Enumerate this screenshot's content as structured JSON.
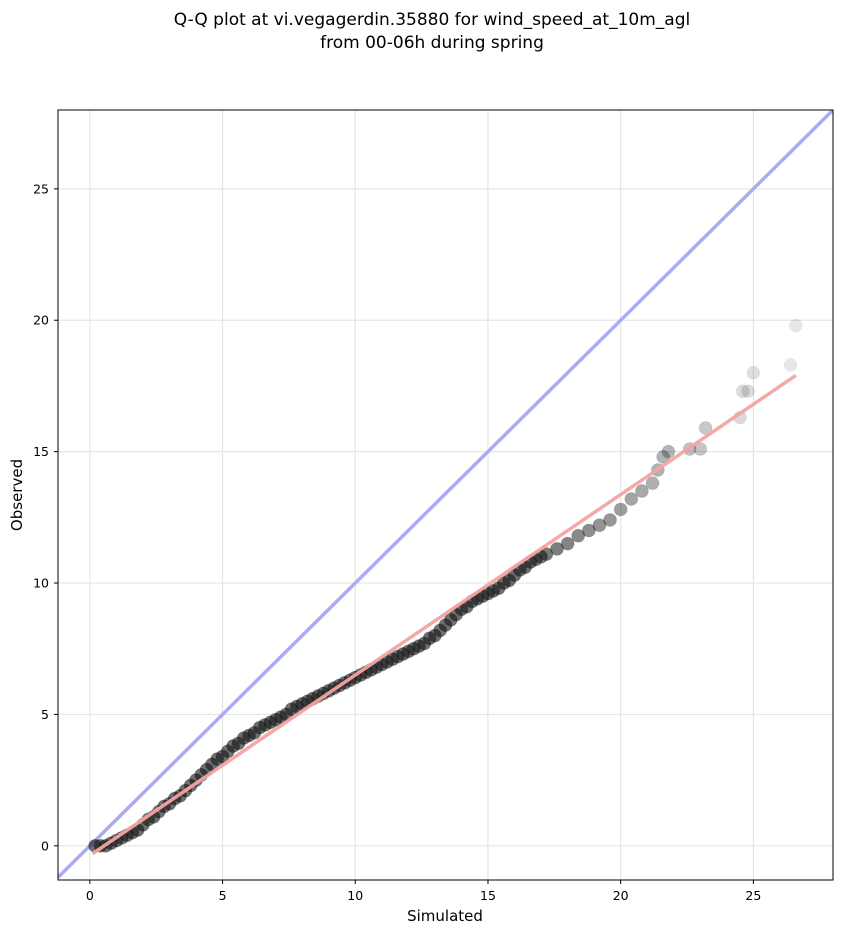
{
  "chart_data": {
    "type": "scatter",
    "title": "Q-Q plot at vi.vegagerdin.35880 for wind_speed_at_10m_agl",
    "subtitle": "from 00-06h during spring",
    "xlabel": "Simulated",
    "ylabel": "Observed",
    "xlim": [
      -1.2,
      28.0
    ],
    "ylim": [
      -1.3,
      28.0
    ],
    "x_ticks": [
      0,
      5,
      10,
      15,
      20,
      25
    ],
    "y_ticks": [
      0,
      5,
      10,
      15,
      20,
      25
    ],
    "grid": true,
    "identity_line": {
      "from": [
        -1.2,
        -1.2
      ],
      "to": [
        28.0,
        28.0
      ],
      "color": "#a9acf4"
    },
    "fit_line": {
      "from": [
        0.1,
        -0.3
      ],
      "to": [
        26.6,
        17.9
      ],
      "color": "#f4a3a3"
    },
    "points_color": "#111111",
    "points": [
      [
        0.2,
        0.0
      ],
      [
        0.4,
        0.0
      ],
      [
        0.6,
        0.0
      ],
      [
        0.8,
        0.1
      ],
      [
        1.0,
        0.2
      ],
      [
        1.2,
        0.3
      ],
      [
        1.4,
        0.4
      ],
      [
        1.6,
        0.5
      ],
      [
        1.8,
        0.6
      ],
      [
        2.0,
        0.8
      ],
      [
        2.2,
        1.0
      ],
      [
        2.4,
        1.1
      ],
      [
        2.6,
        1.3
      ],
      [
        2.8,
        1.5
      ],
      [
        3.0,
        1.6
      ],
      [
        3.2,
        1.8
      ],
      [
        3.4,
        1.9
      ],
      [
        3.6,
        2.1
      ],
      [
        3.8,
        2.3
      ],
      [
        4.0,
        2.5
      ],
      [
        4.2,
        2.7
      ],
      [
        4.4,
        2.9
      ],
      [
        4.6,
        3.1
      ],
      [
        4.8,
        3.3
      ],
      [
        5.0,
        3.4
      ],
      [
        5.2,
        3.6
      ],
      [
        5.4,
        3.8
      ],
      [
        5.6,
        3.9
      ],
      [
        5.8,
        4.1
      ],
      [
        6.0,
        4.2
      ],
      [
        6.2,
        4.3
      ],
      [
        6.4,
        4.5
      ],
      [
        6.6,
        4.6
      ],
      [
        6.8,
        4.7
      ],
      [
        7.0,
        4.8
      ],
      [
        7.2,
        4.9
      ],
      [
        7.4,
        5.0
      ],
      [
        7.6,
        5.2
      ],
      [
        7.8,
        5.3
      ],
      [
        8.0,
        5.4
      ],
      [
        8.2,
        5.5
      ],
      [
        8.4,
        5.6
      ],
      [
        8.6,
        5.7
      ],
      [
        8.8,
        5.8
      ],
      [
        9.0,
        5.9
      ],
      [
        9.2,
        6.0
      ],
      [
        9.4,
        6.1
      ],
      [
        9.6,
        6.2
      ],
      [
        9.8,
        6.3
      ],
      [
        10.0,
        6.4
      ],
      [
        10.2,
        6.5
      ],
      [
        10.4,
        6.6
      ],
      [
        10.6,
        6.7
      ],
      [
        10.8,
        6.8
      ],
      [
        11.0,
        6.9
      ],
      [
        11.2,
        7.0
      ],
      [
        11.4,
        7.1
      ],
      [
        11.6,
        7.2
      ],
      [
        11.8,
        7.3
      ],
      [
        12.0,
        7.4
      ],
      [
        12.2,
        7.5
      ],
      [
        12.4,
        7.6
      ],
      [
        12.6,
        7.7
      ],
      [
        12.8,
        7.9
      ],
      [
        13.0,
        8.0
      ],
      [
        13.2,
        8.2
      ],
      [
        13.4,
        8.4
      ],
      [
        13.6,
        8.6
      ],
      [
        13.8,
        8.8
      ],
      [
        14.0,
        9.0
      ],
      [
        14.2,
        9.1
      ],
      [
        14.4,
        9.3
      ],
      [
        14.6,
        9.4
      ],
      [
        14.8,
        9.5
      ],
      [
        15.0,
        9.6
      ],
      [
        15.2,
        9.7
      ],
      [
        15.4,
        9.8
      ],
      [
        15.6,
        10.0
      ],
      [
        15.8,
        10.1
      ],
      [
        16.0,
        10.3
      ],
      [
        16.2,
        10.5
      ],
      [
        16.4,
        10.6
      ],
      [
        16.6,
        10.8
      ],
      [
        16.8,
        10.9
      ],
      [
        17.0,
        11.0
      ],
      [
        17.2,
        11.1
      ],
      [
        17.6,
        11.3
      ],
      [
        18.0,
        11.5
      ],
      [
        18.4,
        11.8
      ],
      [
        18.8,
        12.0
      ],
      [
        19.2,
        12.2
      ],
      [
        19.6,
        12.4
      ],
      [
        20.0,
        12.8
      ],
      [
        20.4,
        13.2
      ],
      [
        20.8,
        13.5
      ],
      [
        21.2,
        13.8
      ],
      [
        21.4,
        14.3
      ],
      [
        21.6,
        14.8
      ],
      [
        21.8,
        15.0
      ],
      [
        22.6,
        15.1
      ],
      [
        23.0,
        15.1
      ],
      [
        23.2,
        15.9
      ],
      [
        24.5,
        16.3
      ],
      [
        24.6,
        17.3
      ],
      [
        24.8,
        17.3
      ],
      [
        25.0,
        18.0
      ],
      [
        26.4,
        18.3
      ],
      [
        26.6,
        19.8
      ]
    ]
  }
}
